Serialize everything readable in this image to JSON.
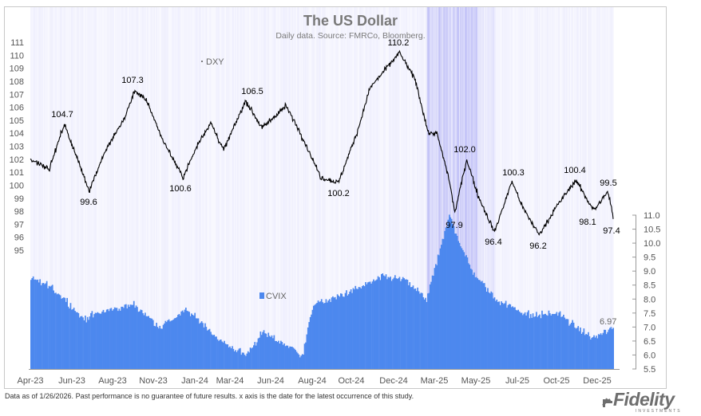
{
  "chart_data": {
    "type": "line",
    "title": "The US Dollar",
    "subtitle": "Daily data.  Source: FMRCo, Bloomberg.",
    "x_tick_labels": [
      "Apr-23",
      "Jun-23",
      "Aug-23",
      "Nov-23",
      "Jan-24",
      "Mar-24",
      "Jun-24",
      "Aug-24",
      "Oct-24",
      "Dec-24",
      "Mar-25",
      "May-25",
      "Jul-25",
      "Oct-25",
      "Dec-25"
    ],
    "left_axis": {
      "ticks": [
        95,
        96,
        97,
        98,
        99,
        100,
        101,
        102,
        103,
        104,
        105,
        106,
        107,
        108,
        109,
        110,
        111
      ],
      "ylim": [
        95,
        111
      ]
    },
    "right_axis": {
      "ticks": [
        5.5,
        6.0,
        6.5,
        7.0,
        7.5,
        8.0,
        8.5,
        9.0,
        9.5,
        10.0,
        10.5,
        11.0
      ],
      "ylim": [
        5.5,
        11.0
      ]
    },
    "series": [
      {
        "name": "DXY",
        "axis": "left",
        "points": [
          [
            "2023-04-01",
            102.0
          ],
          [
            "2023-04-20",
            101.6
          ],
          [
            "2023-05-05",
            101.3
          ],
          [
            "2023-05-31",
            104.7
          ],
          [
            "2023-06-20",
            102.4
          ],
          [
            "2023-07-14",
            99.6
          ],
          [
            "2023-08-10",
            102.5
          ],
          [
            "2023-09-15",
            105.2
          ],
          [
            "2023-10-03",
            107.3
          ],
          [
            "2023-10-25",
            106.4
          ],
          [
            "2023-11-20",
            103.6
          ],
          [
            "2023-12-27",
            100.6
          ],
          [
            "2024-01-25",
            103.4
          ],
          [
            "2024-02-14",
            104.8
          ],
          [
            "2024-03-08",
            102.7
          ],
          [
            "2024-04-16",
            106.5
          ],
          [
            "2024-05-15",
            104.4
          ],
          [
            "2024-06-26",
            106.1
          ],
          [
            "2024-07-20",
            104.2
          ],
          [
            "2024-08-27",
            100.6
          ],
          [
            "2024-09-27",
            100.2
          ],
          [
            "2024-10-31",
            104.2
          ],
          [
            "2024-11-22",
            107.5
          ],
          [
            "2025-01-13",
            110.2
          ],
          [
            "2025-02-10",
            108.1
          ],
          [
            "2025-03-05",
            104.0
          ],
          [
            "2025-03-20",
            104.0
          ],
          [
            "2025-04-10",
            100.6
          ],
          [
            "2025-04-21",
            97.9
          ],
          [
            "2025-05-12",
            102.0
          ],
          [
            "2025-06-01",
            99.2
          ],
          [
            "2025-06-30",
            96.4
          ],
          [
            "2025-07-31",
            100.3
          ],
          [
            "2025-08-20",
            98.2
          ],
          [
            "2025-09-17",
            96.2
          ],
          [
            "2025-10-20",
            98.5
          ],
          [
            "2025-11-21",
            100.4
          ],
          [
            "2025-12-15",
            98.6
          ],
          [
            "2025-12-24",
            98.1
          ],
          [
            "2026-01-08",
            99.0
          ],
          [
            "2026-01-16",
            99.5
          ],
          [
            "2026-01-23",
            98.3
          ],
          [
            "2026-01-26",
            97.4
          ]
        ]
      },
      {
        "name": "CVIX",
        "axis": "right",
        "chart_type": "bar",
        "points": [
          [
            "2023-04-01",
            8.7
          ],
          [
            "2023-05-01",
            8.5
          ],
          [
            "2023-06-01",
            8.0
          ],
          [
            "2023-07-01",
            7.3
          ],
          [
            "2023-08-15",
            7.6
          ],
          [
            "2023-10-01",
            7.8
          ],
          [
            "2023-11-15",
            7.0
          ],
          [
            "2024-01-01",
            7.6
          ],
          [
            "2024-02-01",
            7.1
          ],
          [
            "2024-03-01",
            6.5
          ],
          [
            "2024-04-15",
            6.0
          ],
          [
            "2024-05-15",
            6.8
          ],
          [
            "2024-07-01",
            6.3
          ],
          [
            "2024-07-25",
            6.0
          ],
          [
            "2024-08-12",
            7.8
          ],
          [
            "2024-09-15",
            8.0
          ],
          [
            "2024-11-01",
            8.4
          ],
          [
            "2024-12-15",
            8.8
          ],
          [
            "2025-01-20",
            8.7
          ],
          [
            "2025-03-01",
            8.0
          ],
          [
            "2025-04-11",
            11.0
          ],
          [
            "2025-04-25",
            10.2
          ],
          [
            "2025-05-20",
            9.0
          ],
          [
            "2025-07-01",
            8.0
          ],
          [
            "2025-09-01",
            7.4
          ],
          [
            "2025-10-20",
            7.5
          ],
          [
            "2025-11-20",
            7.0
          ],
          [
            "2025-12-20",
            6.6
          ],
          [
            "2026-01-26",
            6.97
          ]
        ]
      }
    ],
    "annotations": [
      "104.7",
      "99.6",
      "107.3",
      "100.6",
      "106.5",
      "100.2",
      "110.2",
      "97.9",
      "102.0",
      "96.4",
      "100.3",
      "96.2",
      "100.4",
      "98.1",
      "99.5",
      "97.4",
      "6.97"
    ],
    "legend": [
      "DXY",
      "CVIX"
    ],
    "grid": false,
    "colors": {
      "dxy": "#000000",
      "cvix": "#4d88ee",
      "shading": "#7f7fef"
    }
  },
  "footnote": "Data as of 1/26/2026. Past performance is no guarantee of future results. x axis is the date for the latest occurrence of this study.",
  "logo": {
    "name": "Fidelity",
    "sub": "INVESTMENTS"
  }
}
